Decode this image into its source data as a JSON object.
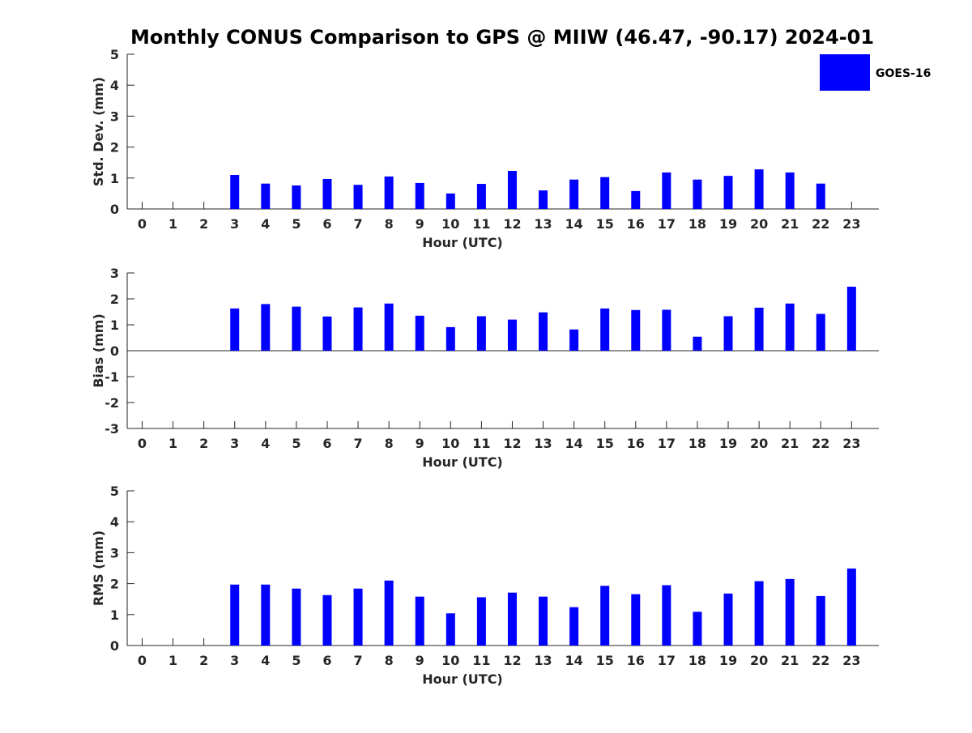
{
  "title": "Monthly CONUS Comparison to GPS @ MIIW (46.47, -90.17) 2024-01",
  "colors": {
    "bar": "#0000ff",
    "axis": "#262626",
    "background": "#ffffff"
  },
  "legend": {
    "label": "GOES-16",
    "placement": "top-right"
  },
  "chart_data": [
    {
      "type": "bar",
      "title": "",
      "xlabel": "Hour (UTC)",
      "ylabel": "Std. Dev. (mm)",
      "ylim": [
        0,
        5
      ],
      "yticks": [
        "0",
        "1",
        "2",
        "3",
        "4",
        "5"
      ],
      "categories": [
        "0",
        "1",
        "2",
        "3",
        "4",
        "5",
        "6",
        "7",
        "8",
        "9",
        "10",
        "11",
        "12",
        "13",
        "14",
        "15",
        "16",
        "17",
        "18",
        "19",
        "20",
        "21",
        "22",
        "23"
      ],
      "series": [
        {
          "name": "GOES-16",
          "values": [
            null,
            null,
            null,
            1.1,
            0.82,
            0.76,
            0.97,
            0.78,
            1.05,
            0.84,
            0.5,
            0.81,
            1.23,
            0.6,
            0.95,
            1.03,
            0.58,
            1.18,
            0.95,
            1.07,
            1.28,
            1.18,
            0.82,
            null
          ]
        }
      ],
      "grid": false
    },
    {
      "type": "bar",
      "title": "",
      "xlabel": "Hour (UTC)",
      "ylabel": "Bias (mm)",
      "ylim": [
        -3,
        3
      ],
      "yticks": [
        "-3",
        "-2",
        "-1",
        "0",
        "1",
        "2",
        "3"
      ],
      "categories": [
        "0",
        "1",
        "2",
        "3",
        "4",
        "5",
        "6",
        "7",
        "8",
        "9",
        "10",
        "11",
        "12",
        "13",
        "14",
        "15",
        "16",
        "17",
        "18",
        "19",
        "20",
        "21",
        "22",
        "23"
      ],
      "series": [
        {
          "name": "GOES-16",
          "values": [
            null,
            null,
            null,
            1.63,
            1.8,
            1.7,
            1.32,
            1.67,
            1.82,
            1.35,
            0.91,
            1.33,
            1.2,
            1.48,
            0.82,
            1.63,
            1.57,
            1.58,
            0.54,
            1.33,
            1.66,
            1.82,
            1.42,
            2.47
          ]
        }
      ],
      "grid": false
    },
    {
      "type": "bar",
      "title": "",
      "xlabel": "Hour (UTC)",
      "ylabel": "RMS (mm)",
      "ylim": [
        0,
        5
      ],
      "yticks": [
        "0",
        "1",
        "2",
        "3",
        "4",
        "5"
      ],
      "categories": [
        "0",
        "1",
        "2",
        "3",
        "4",
        "5",
        "6",
        "7",
        "8",
        "9",
        "10",
        "11",
        "12",
        "13",
        "14",
        "15",
        "16",
        "17",
        "18",
        "19",
        "20",
        "21",
        "22",
        "23"
      ],
      "series": [
        {
          "name": "GOES-16",
          "values": [
            null,
            null,
            null,
            1.97,
            1.97,
            1.84,
            1.63,
            1.84,
            2.1,
            1.58,
            1.04,
            1.56,
            1.71,
            1.58,
            1.24,
            1.93,
            1.66,
            1.95,
            1.09,
            1.68,
            2.08,
            2.15,
            1.6,
            2.49
          ]
        }
      ],
      "grid": false
    }
  ]
}
